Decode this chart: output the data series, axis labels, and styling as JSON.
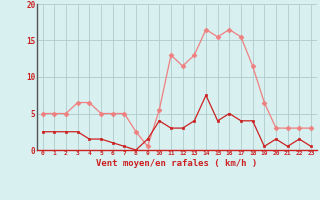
{
  "hours": [
    0,
    1,
    2,
    3,
    4,
    5,
    6,
    7,
    8,
    9,
    10,
    11,
    12,
    13,
    14,
    15,
    16,
    17,
    18,
    19,
    20,
    21,
    22,
    23
  ],
  "vent_moyen": [
    2.5,
    2.5,
    2.5,
    2.5,
    1.5,
    1.5,
    1.0,
    0.5,
    0.0,
    1.5,
    4.0,
    3.0,
    3.0,
    4.0,
    7.5,
    4.0,
    5.0,
    4.0,
    4.0,
    0.5,
    1.5,
    0.5,
    1.5,
    0.5
  ],
  "vent_rafales": [
    5.0,
    5.0,
    5.0,
    6.5,
    6.5,
    5.0,
    5.0,
    5.0,
    2.5,
    0.5,
    5.5,
    13.0,
    11.5,
    13.0,
    16.5,
    15.5,
    16.5,
    15.5,
    11.5,
    6.5,
    3.0,
    3.0,
    3.0,
    3.0
  ],
  "color_moyen": "#cc2222",
  "color_rafales": "#f08080",
  "bg_color": "#d8f0f0",
  "grid_color": "#b0cccc",
  "xlabel": "Vent moyen/en rafales ( km/h )",
  "ylim": [
    0,
    20
  ],
  "yticks": [
    0,
    5,
    10,
    15,
    20
  ],
  "xlim": [
    -0.5,
    23.5
  ]
}
